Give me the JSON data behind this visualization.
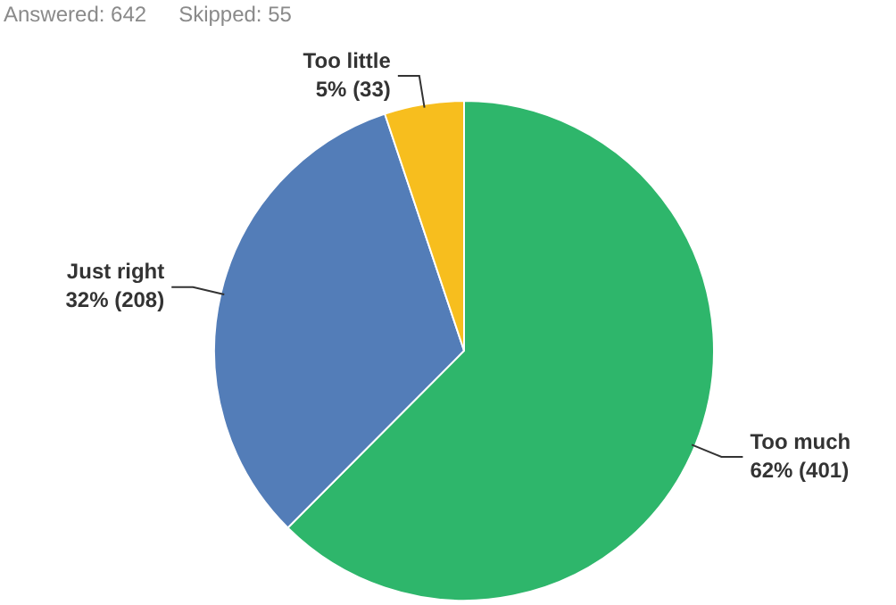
{
  "chart_data": {
    "type": "pie",
    "categories": [
      "Too much",
      "Just right",
      "Too little"
    ],
    "values": [
      401,
      208,
      33
    ],
    "colors": [
      "#2eb66b",
      "#537db8",
      "#f7be1e"
    ],
    "value_labels": [
      "62% (401)",
      "32% (208)",
      "5% (33)"
    ],
    "legend": false,
    "annotations": [
      "Answered: 642",
      "Skipped: 55"
    ]
  }
}
